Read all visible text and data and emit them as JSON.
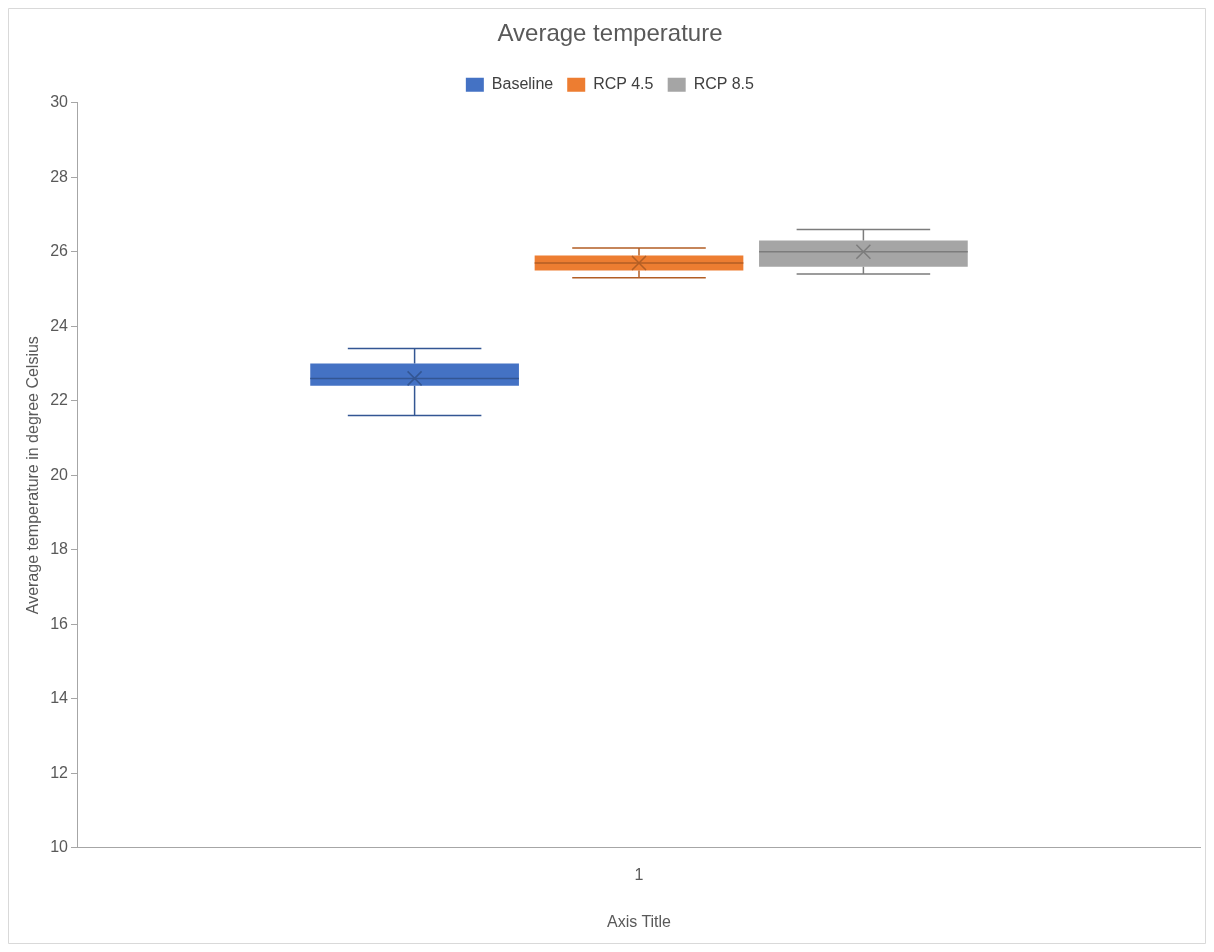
{
  "chart_data": {
    "type": "box",
    "title": "Average temperature",
    "xlabel": "Axis Title",
    "ylabel": "Average temperature in degree Celsius",
    "categories": [
      "1"
    ],
    "series": [
      {
        "name": "Baseline",
        "color": "#4472c4",
        "boxes": [
          {
            "low": 21.6,
            "q1": 22.4,
            "median": 22.6,
            "q3": 23.0,
            "high": 23.4,
            "mean": 22.6
          }
        ]
      },
      {
        "name": "RCP 4.5",
        "color": "#ed7d31",
        "boxes": [
          {
            "low": 25.3,
            "q1": 25.5,
            "median": 25.7,
            "q3": 25.9,
            "high": 26.1,
            "mean": 25.7
          }
        ]
      },
      {
        "name": "RCP 8.5",
        "color": "#a5a5a5",
        "boxes": [
          {
            "low": 25.4,
            "q1": 25.6,
            "median": 26.0,
            "q3": 26.3,
            "high": 26.6,
            "mean": 26.0
          }
        ]
      }
    ],
    "ylim": [
      10,
      30
    ],
    "yticks": [
      10,
      12,
      14,
      16,
      18,
      20,
      22,
      24,
      26,
      28,
      30
    ],
    "grid": false,
    "legend": "top"
  }
}
